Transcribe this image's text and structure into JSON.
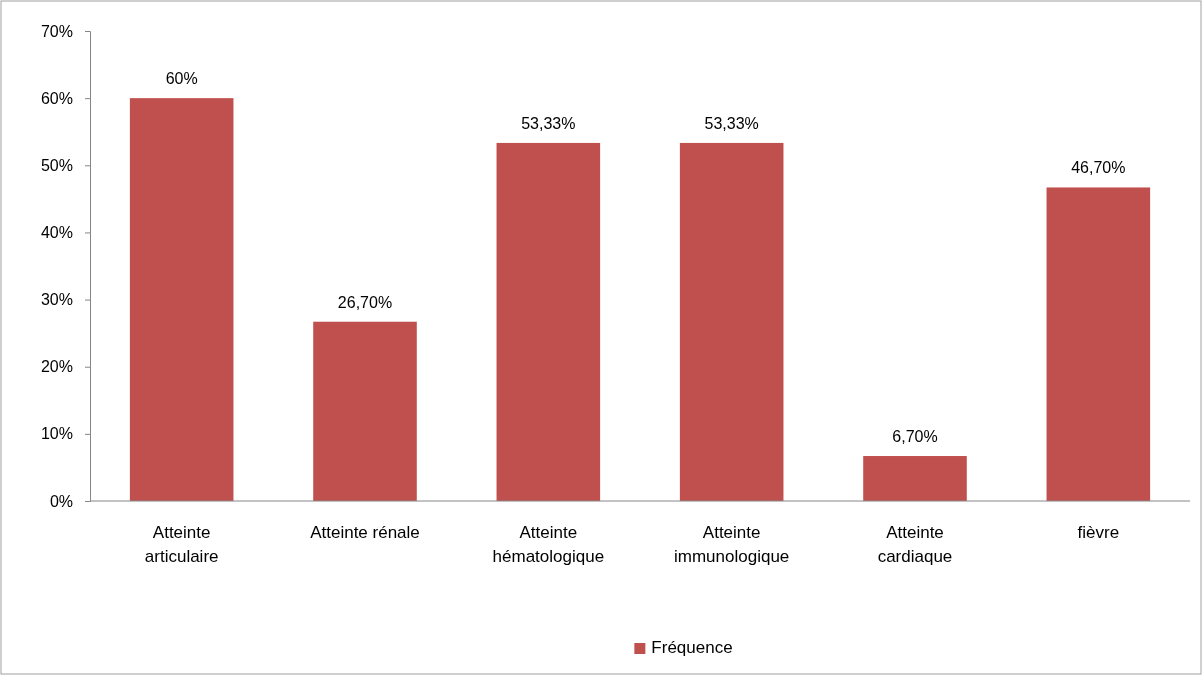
{
  "chart_data": {
    "type": "bar",
    "categories": [
      "Atteinte articulaire",
      "Atteinte rénale",
      "Atteinte hématologique",
      "Atteinte immunologique",
      "Atteinte cardiaque",
      "fièvre"
    ],
    "series": [
      {
        "name": "Fréquence",
        "color": "#c0504d",
        "values": [
          60,
          26.7,
          53.33,
          53.33,
          6.7,
          46.7
        ],
        "value_labels": [
          "60%",
          "26,70%",
          "53,33%",
          "53,33%",
          "6,70%",
          "46,70%"
        ]
      }
    ],
    "ylim": [
      0,
      70
    ],
    "yticks": [
      {
        "value": 0,
        "label": "0%"
      },
      {
        "value": 10,
        "label": "10%"
      },
      {
        "value": 20,
        "label": "20%"
      },
      {
        "value": 30,
        "label": "30%"
      },
      {
        "value": 40,
        "label": "40%"
      },
      {
        "value": 50,
        "label": "50%"
      },
      {
        "value": 60,
        "label": "60%"
      },
      {
        "value": 70,
        "label": "70%"
      }
    ],
    "grid": false,
    "legend": "bottom"
  }
}
